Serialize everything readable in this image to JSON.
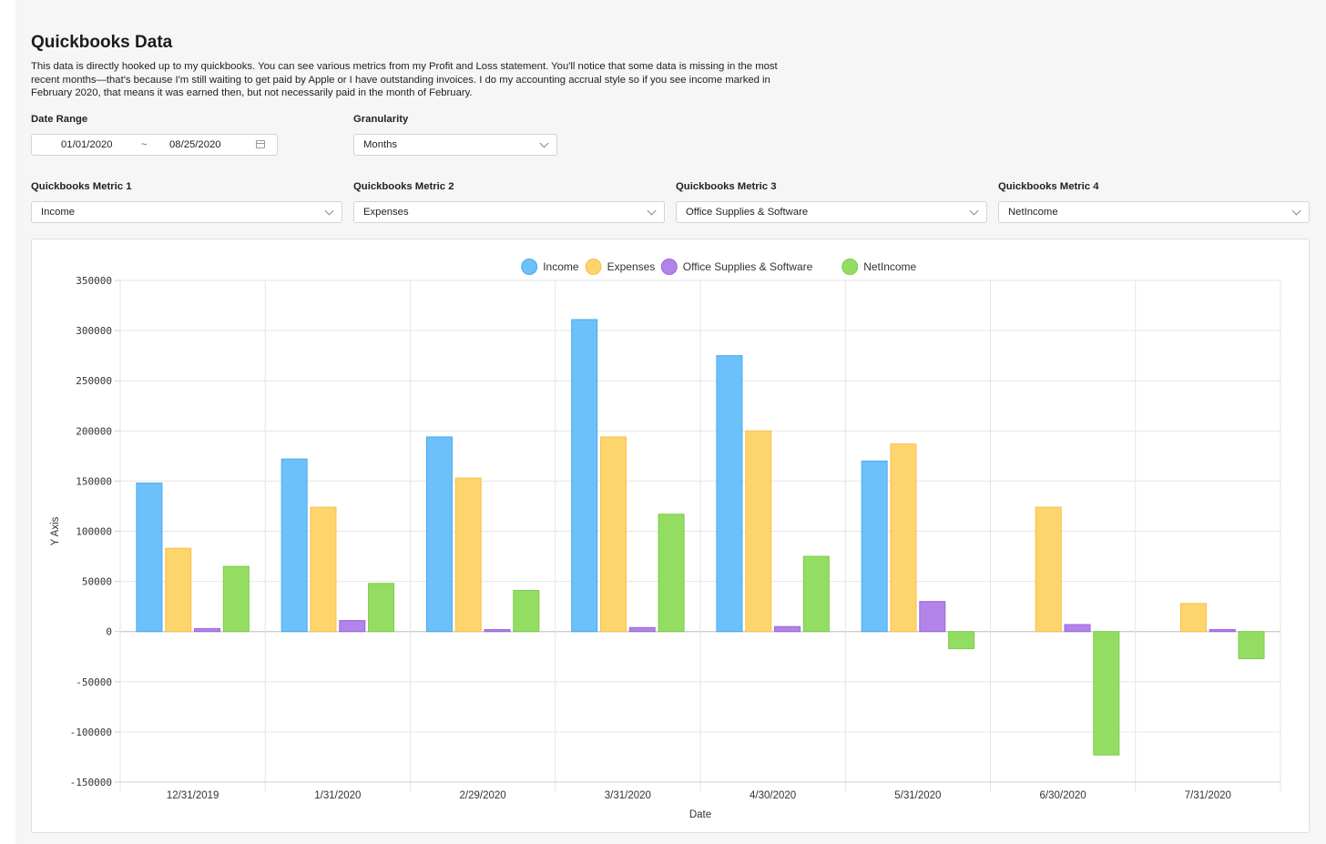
{
  "header": {
    "title": "Quickbooks Data",
    "description": "This data is directly hooked up to my quickbooks. You can see various metrics from my Profit and Loss statement. You'll notice that some data is missing in the most recent months—that's because I'm still waiting to get paid by Apple or I have outstanding invoices. I do my accounting accrual style so if you see income marked in February 2020, that means it was earned then, but not necessarily paid in the month of February."
  },
  "filters": {
    "date_range_label": "Date Range",
    "date_start": "01/01/2020",
    "date_separator": "~",
    "date_end": "08/25/2020",
    "granularity_label": "Granularity",
    "granularity_value": "Months",
    "metric1_label": "Quickbooks Metric 1",
    "metric1_value": "Income",
    "metric2_label": "Quickbooks Metric 2",
    "metric2_value": "Expenses",
    "metric3_label": "Quickbooks Metric 3",
    "metric3_value": "Office Supplies & Software",
    "metric4_label": "Quickbooks Metric 4",
    "metric4_value": "NetIncome"
  },
  "chart_data": {
    "type": "bar",
    "xlabel": "Date",
    "ylabel": "Y Axis",
    "ylim": [
      -150000,
      350000
    ],
    "yticks": [
      350000,
      300000,
      250000,
      200000,
      150000,
      100000,
      50000,
      0,
      -50000,
      -100000,
      -150000
    ],
    "grid": true,
    "legend_position": "top-center",
    "categories": [
      "12/31/2019",
      "1/31/2020",
      "2/29/2020",
      "3/31/2020",
      "4/30/2020",
      "5/31/2020",
      "6/30/2020",
      "7/31/2020"
    ],
    "series": [
      {
        "name": "Income",
        "color": "#6cc1fb",
        "stroke": "#4aa9ee",
        "values": [
          148000,
          172000,
          194000,
          311000,
          275000,
          170000,
          0,
          0
        ]
      },
      {
        "name": "Expenses",
        "color": "#fed46c",
        "stroke": "#f5c24a",
        "values": [
          83000,
          124000,
          153000,
          194000,
          200000,
          187000,
          124000,
          28000
        ]
      },
      {
        "name": "Office Supplies & Software",
        "color": "#b283e8",
        "stroke": "#9a66da",
        "values": [
          3000,
          11000,
          2000,
          4000,
          5000,
          30000,
          7000,
          2000
        ]
      },
      {
        "name": "NetIncome",
        "color": "#94dd63",
        "stroke": "#7ccc48",
        "values": [
          65000,
          48000,
          41000,
          117000,
          75000,
          -17000,
          -123000,
          -27000
        ]
      }
    ]
  }
}
